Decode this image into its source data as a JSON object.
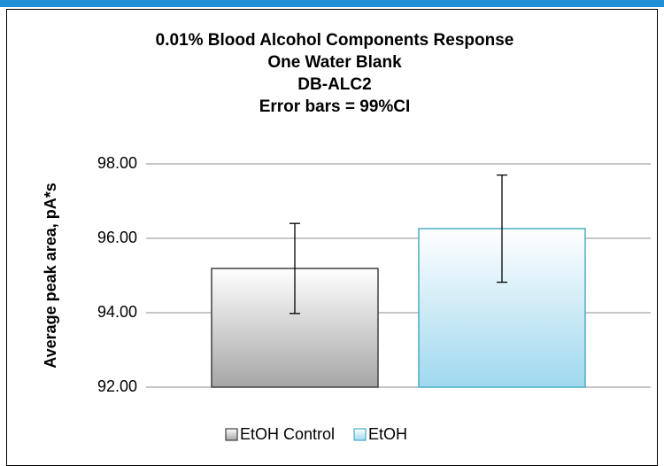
{
  "chart_data": {
    "type": "bar",
    "title": [
      "0.01% Blood Alcohol Components Response",
      "One Water Blank",
      "DB-ALC2",
      "Error bars = 99%CI"
    ],
    "y_label": "Average peak area, pA*s",
    "categories": [
      null
    ],
    "series": [
      {
        "name": "EtOH Control",
        "color": "#a6a6a6",
        "edge_color": "#404040",
        "values": [
          95.19
        ],
        "errors": [
          1.21
        ]
      },
      {
        "name": "EtOH",
        "color": "#9fd8ee",
        "edge_color": "#4bacc6",
        "values": [
          96.26
        ],
        "errors": [
          1.44
        ]
      }
    ],
    "ylim": [
      92,
      98
    ],
    "yticks": [
      {
        "value": 92,
        "label": "92.00"
      },
      {
        "value": 94,
        "label": "94.00"
      },
      {
        "value": 96,
        "label": "96.00"
      },
      {
        "value": 98,
        "label": "98.00"
      }
    ],
    "grid": true,
    "legend": "bottom"
  }
}
